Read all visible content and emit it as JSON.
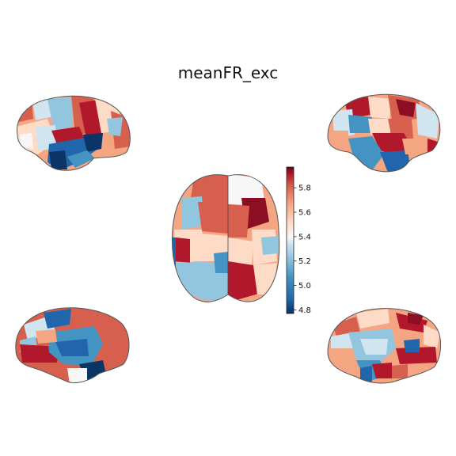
{
  "chart_data": {
    "type": "heatmap",
    "title": "meanFR_exc",
    "colormap": "RdBu_r",
    "colorbar": {
      "vmin": 4.77,
      "vmax": 5.97,
      "ticks": [
        4.8,
        5.0,
        5.2,
        5.4,
        5.6,
        5.8
      ],
      "tick_labels": [
        "4.8",
        "5.0",
        "5.2",
        "5.4",
        "5.6",
        "5.8"
      ]
    },
    "views": [
      {
        "name": "left-lateral",
        "position": "top-left"
      },
      {
        "name": "right-lateral",
        "position": "top-right"
      },
      {
        "name": "dorsal",
        "position": "center"
      },
      {
        "name": "left-medial",
        "position": "bottom-left"
      },
      {
        "name": "right-medial",
        "position": "bottom-right"
      }
    ],
    "colors": {
      "dark_red": "#8b0e23",
      "red": "#b2182b",
      "salmon": "#d6604d",
      "light_salmon": "#f4a582",
      "peach": "#fddbc7",
      "white": "#f7f7f7",
      "pale_blue": "#d1e5f0",
      "light_blue": "#92c5de",
      "blue": "#4393c3",
      "dark_blue": "#2166ac",
      "navy": "#0b3566"
    }
  }
}
